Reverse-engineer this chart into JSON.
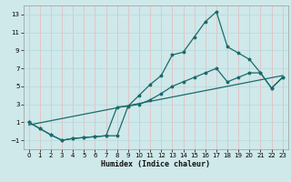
{
  "xlabel": "Humidex (Indice chaleur)",
  "bg_color": "#cfe8ea",
  "grid_color_v": "#e8b8b8",
  "grid_color_h": "#b8d8dc",
  "line_color": "#1a6b6b",
  "xlim": [
    -0.5,
    23.5
  ],
  "ylim": [
    -2.0,
    14.0
  ],
  "xticks": [
    0,
    1,
    2,
    3,
    4,
    5,
    6,
    7,
    8,
    9,
    10,
    11,
    12,
    13,
    14,
    15,
    16,
    17,
    18,
    19,
    20,
    21,
    22,
    23
  ],
  "yticks": [
    -1,
    1,
    3,
    5,
    7,
    9,
    11,
    13
  ],
  "line1_x": [
    0,
    1,
    2,
    3,
    4,
    5,
    6,
    7,
    8,
    9,
    10,
    11,
    12,
    13,
    14,
    15,
    16,
    17,
    18,
    19,
    20,
    21,
    22,
    23
  ],
  "line1_y": [
    1.0,
    0.3,
    -0.4,
    -1.0,
    -0.8,
    -0.7,
    -0.6,
    -0.5,
    -0.5,
    2.8,
    4.0,
    5.2,
    6.2,
    8.5,
    8.8,
    10.5,
    12.2,
    13.3,
    9.4,
    8.7,
    8.0,
    6.5,
    4.8,
    6.0
  ],
  "line2_x": [
    0,
    1,
    2,
    3,
    4,
    5,
    6,
    7,
    8,
    9,
    10,
    11,
    12,
    13,
    14,
    15,
    16,
    17,
    18,
    19,
    20,
    21,
    22,
    23
  ],
  "line2_y": [
    1.0,
    0.3,
    -0.4,
    -1.0,
    -0.8,
    -0.7,
    -0.6,
    -0.5,
    2.7,
    2.8,
    3.0,
    3.5,
    4.2,
    5.0,
    5.5,
    6.0,
    6.5,
    7.0,
    5.5,
    6.0,
    6.5,
    6.5,
    4.8,
    6.0
  ],
  "line3_x": [
    0,
    23
  ],
  "line3_y": [
    0.7,
    6.2
  ]
}
